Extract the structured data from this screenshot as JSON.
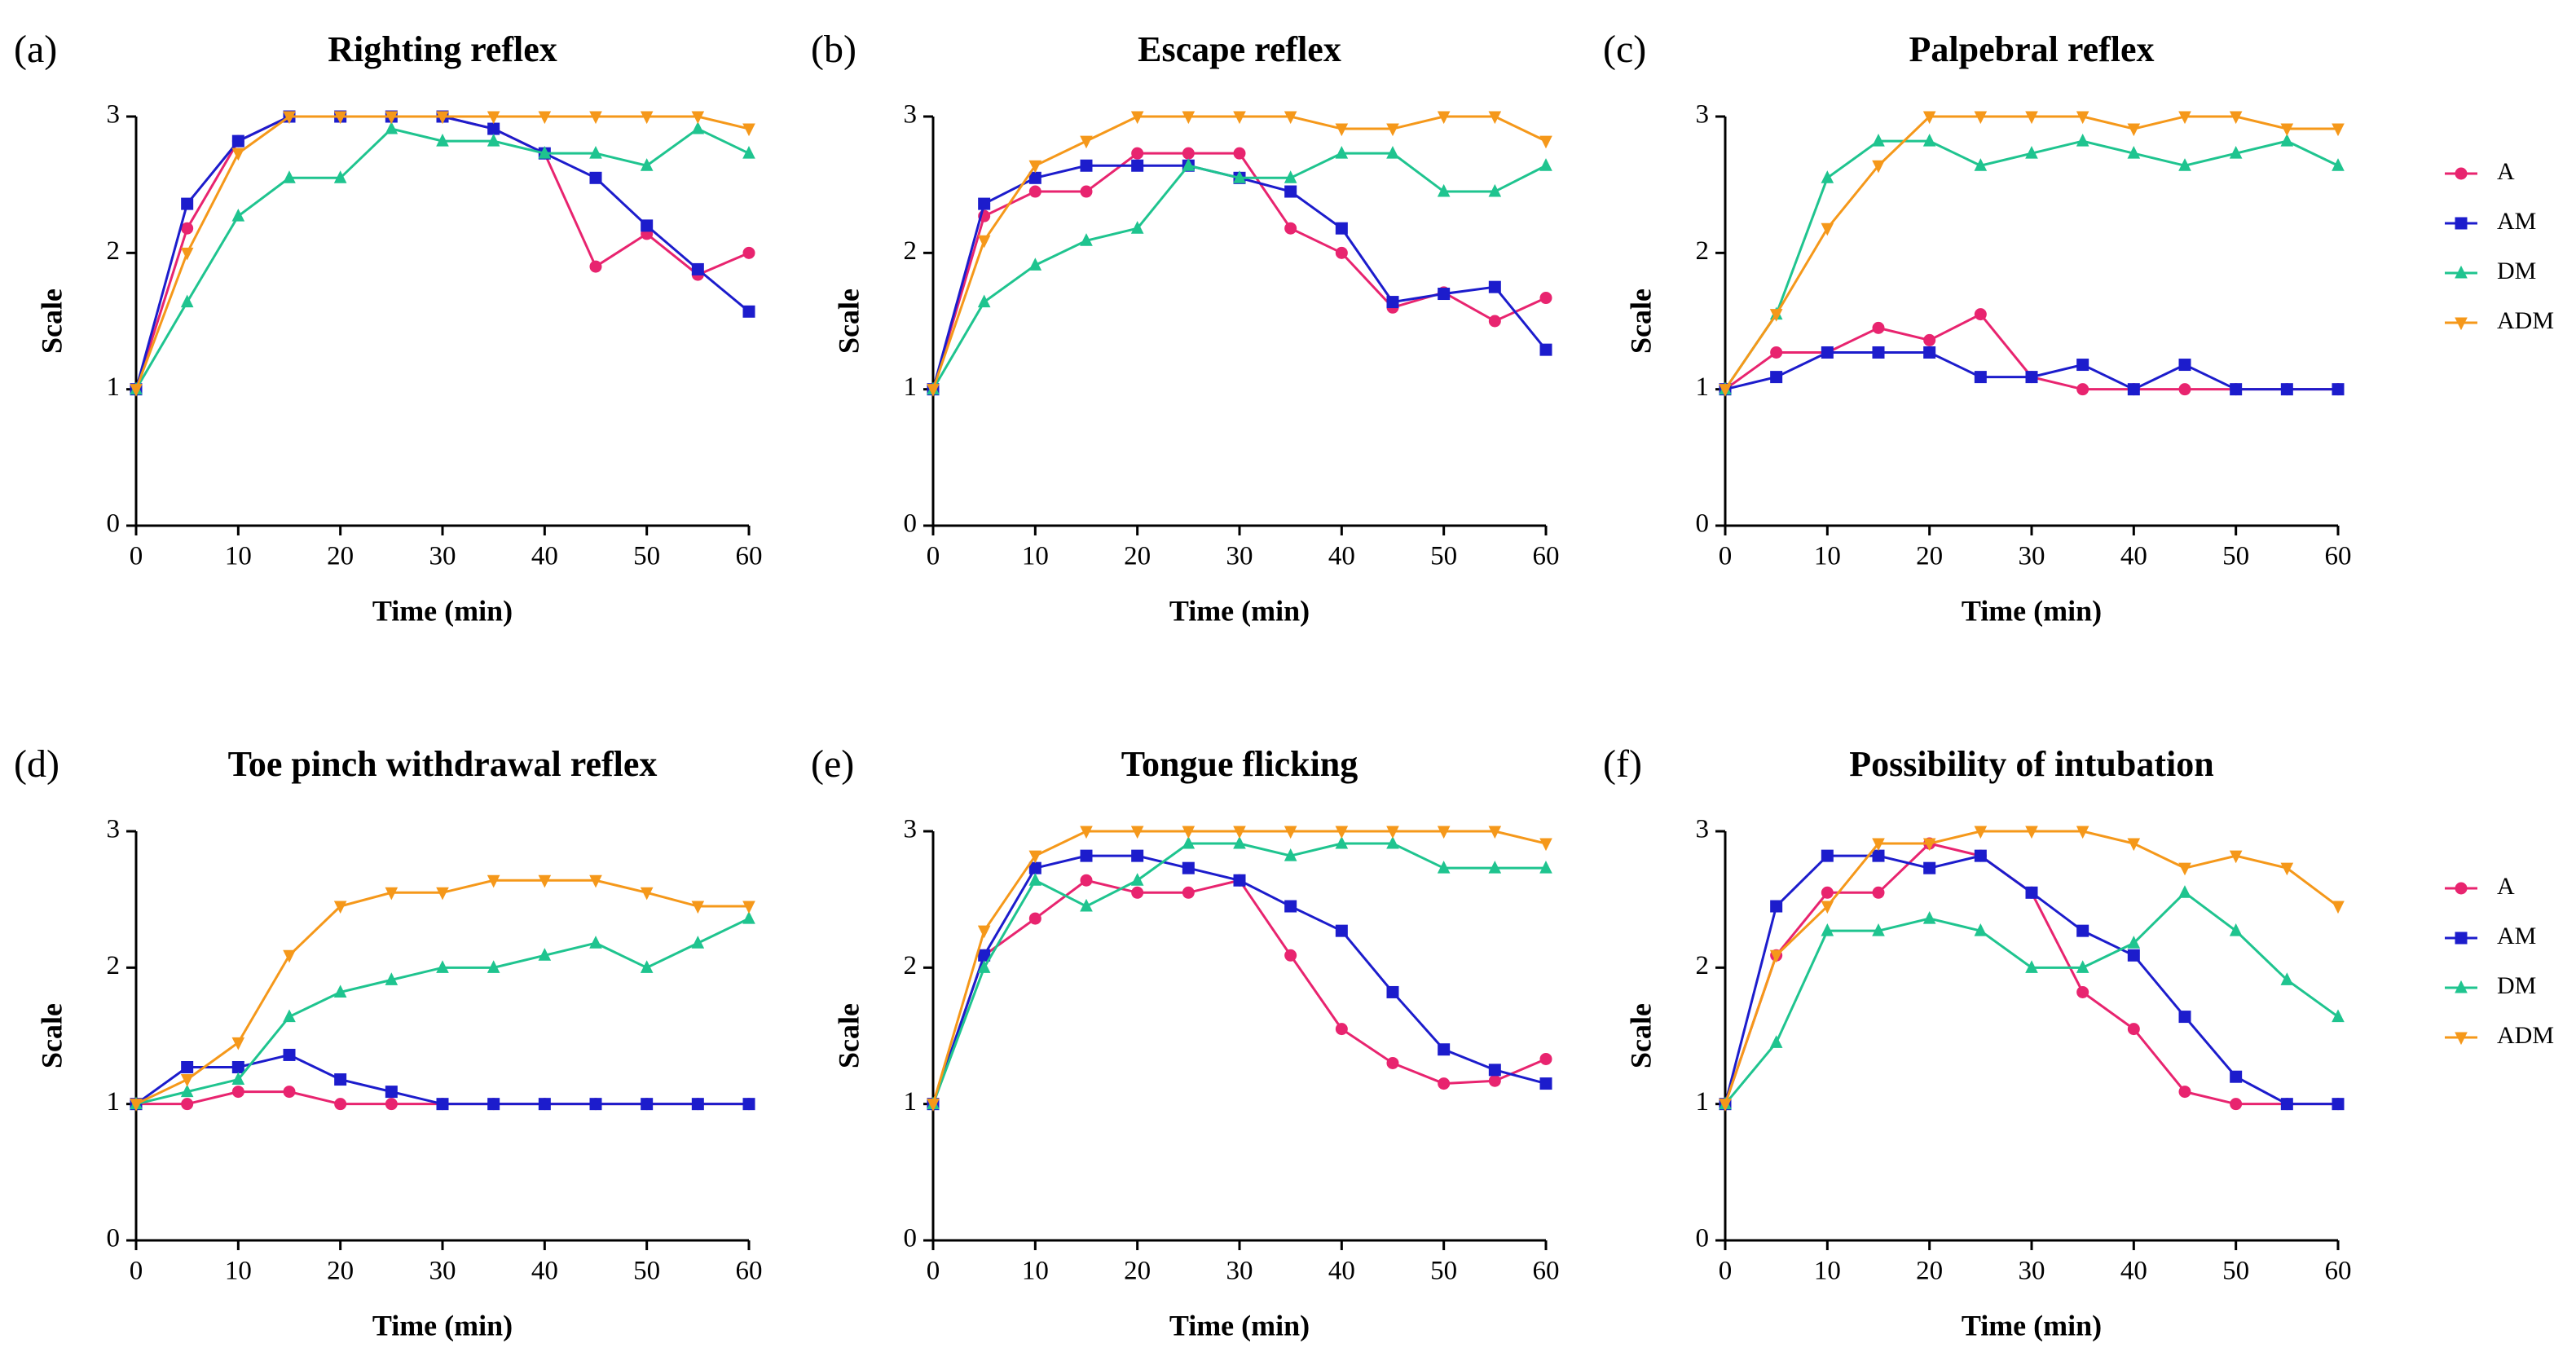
{
  "chart_data": [
    {
      "type": "line",
      "panel": "(a)",
      "title": "Righting reflex",
      "xlabel": "Time (min)",
      "ylabel": "Scale",
      "x": [
        0,
        5,
        10,
        15,
        20,
        25,
        30,
        35,
        40,
        45,
        50,
        55,
        60
      ],
      "xlim": [
        0,
        60
      ],
      "ylim": [
        0,
        3
      ],
      "xticks": [
        0,
        10,
        20,
        30,
        40,
        50,
        60
      ],
      "yticks": [
        0,
        1,
        2,
        3
      ],
      "legend": false,
      "series": [
        {
          "color": "#e8246f",
          "marker": "circle",
          "values": [
            1,
            2.18,
            2.82,
            3,
            3,
            3,
            3,
            2.91,
            2.73,
            1.9,
            2.14,
            1.84,
            2.0
          ]
        },
        {
          "color": "#1c1ccc",
          "marker": "square",
          "values": [
            1,
            2.36,
            2.82,
            3,
            3,
            3,
            3,
            2.91,
            2.73,
            2.55,
            2.2,
            1.88,
            1.57
          ]
        },
        {
          "color": "#1fc48f",
          "marker": "triangle-up",
          "values": [
            1,
            1.64,
            2.27,
            2.55,
            2.55,
            2.91,
            2.82,
            2.82,
            2.73,
            2.73,
            2.64,
            2.91,
            2.73
          ]
        },
        {
          "color": "#f5981a",
          "marker": "triangle-down",
          "values": [
            1,
            2.0,
            2.73,
            3,
            3,
            3,
            3,
            3,
            3,
            3,
            3,
            3,
            2.91
          ]
        }
      ]
    },
    {
      "type": "line",
      "panel": "(b)",
      "title": "Escape reflex",
      "xlabel": "Time (min)",
      "ylabel": "Scale",
      "x": [
        0,
        5,
        10,
        15,
        20,
        25,
        30,
        35,
        40,
        45,
        50,
        55,
        60
      ],
      "xlim": [
        0,
        60
      ],
      "ylim": [
        0,
        3
      ],
      "xticks": [
        0,
        10,
        20,
        30,
        40,
        50,
        60
      ],
      "yticks": [
        0,
        1,
        2,
        3
      ],
      "legend": false,
      "series": [
        {
          "color": "#e8246f",
          "marker": "circle",
          "values": [
            1,
            2.27,
            2.45,
            2.45,
            2.73,
            2.73,
            2.73,
            2.18,
            2.0,
            1.6,
            1.71,
            1.5,
            1.67
          ]
        },
        {
          "color": "#1c1ccc",
          "marker": "square",
          "values": [
            1,
            2.36,
            2.55,
            2.64,
            2.64,
            2.64,
            2.55,
            2.45,
            2.18,
            1.64,
            1.7,
            1.75,
            1.29
          ]
        },
        {
          "color": "#1fc48f",
          "marker": "triangle-up",
          "values": [
            1,
            1.64,
            1.91,
            2.09,
            2.18,
            2.64,
            2.55,
            2.55,
            2.73,
            2.73,
            2.45,
            2.45,
            2.64
          ]
        },
        {
          "color": "#f5981a",
          "marker": "triangle-down",
          "values": [
            1,
            2.09,
            2.64,
            2.82,
            3,
            3,
            3,
            3,
            2.91,
            2.91,
            3,
            3,
            2.82
          ]
        }
      ]
    },
    {
      "type": "line",
      "panel": "(c)",
      "title": "Palpebral reflex",
      "xlabel": "Time (min)",
      "ylabel": "Scale",
      "x": [
        0,
        5,
        10,
        15,
        20,
        25,
        30,
        35,
        40,
        45,
        50,
        55,
        60
      ],
      "xlim": [
        0,
        60
      ],
      "ylim": [
        0,
        3
      ],
      "xticks": [
        0,
        10,
        20,
        30,
        40,
        50,
        60
      ],
      "yticks": [
        0,
        1,
        2,
        3
      ],
      "legend": true,
      "series": [
        {
          "name": "A",
          "color": "#e8246f",
          "marker": "circle",
          "values": [
            1,
            1.27,
            1.27,
            1.45,
            1.36,
            1.55,
            1.09,
            1,
            1,
            1,
            1,
            1,
            1
          ]
        },
        {
          "name": "AM",
          "color": "#1c1ccc",
          "marker": "square",
          "values": [
            1,
            1.09,
            1.27,
            1.27,
            1.27,
            1.09,
            1.09,
            1.18,
            1,
            1.18,
            1,
            1,
            1
          ]
        },
        {
          "name": "DM",
          "color": "#1fc48f",
          "marker": "triangle-up",
          "values": [
            1,
            1.55,
            2.55,
            2.82,
            2.82,
            2.64,
            2.73,
            2.82,
            2.73,
            2.64,
            2.73,
            2.82,
            2.64
          ]
        },
        {
          "name": "ADM",
          "color": "#f5981a",
          "marker": "triangle-down",
          "values": [
            1,
            1.55,
            2.18,
            2.64,
            3,
            3,
            3,
            3,
            2.91,
            3,
            3,
            2.91,
            2.91
          ]
        }
      ]
    },
    {
      "type": "line",
      "panel": "(d)",
      "title": "Toe pinch withdrawal reflex",
      "xlabel": "Time (min)",
      "ylabel": "Scale",
      "x": [
        0,
        5,
        10,
        15,
        20,
        25,
        30,
        35,
        40,
        45,
        50,
        55,
        60
      ],
      "xlim": [
        0,
        60
      ],
      "ylim": [
        0,
        3
      ],
      "xticks": [
        0,
        10,
        20,
        30,
        40,
        50,
        60
      ],
      "yticks": [
        0,
        1,
        2,
        3
      ],
      "legend": false,
      "series": [
        {
          "color": "#e8246f",
          "marker": "circle",
          "values": [
            1,
            1,
            1.09,
            1.09,
            1,
            1,
            1,
            1,
            1,
            1,
            1,
            1,
            1
          ]
        },
        {
          "color": "#1c1ccc",
          "marker": "square",
          "values": [
            1,
            1.27,
            1.27,
            1.36,
            1.18,
            1.09,
            1,
            1,
            1,
            1,
            1,
            1,
            1
          ]
        },
        {
          "color": "#1fc48f",
          "marker": "triangle-up",
          "values": [
            1,
            1.09,
            1.18,
            1.64,
            1.82,
            1.91,
            2,
            2,
            2.09,
            2.18,
            2,
            2.18,
            2.36
          ]
        },
        {
          "color": "#f5981a",
          "marker": "triangle-down",
          "values": [
            1,
            1.18,
            1.45,
            2.09,
            2.45,
            2.55,
            2.55,
            2.64,
            2.64,
            2.64,
            2.55,
            2.45,
            2.45
          ]
        }
      ]
    },
    {
      "type": "line",
      "panel": "(e)",
      "title": "Tongue flicking",
      "xlabel": "Time (min)",
      "ylabel": "Scale",
      "x": [
        0,
        5,
        10,
        15,
        20,
        25,
        30,
        35,
        40,
        45,
        50,
        55,
        60
      ],
      "xlim": [
        0,
        60
      ],
      "ylim": [
        0,
        3
      ],
      "xticks": [
        0,
        10,
        20,
        30,
        40,
        50,
        60
      ],
      "yticks": [
        0,
        1,
        2,
        3
      ],
      "legend": false,
      "series": [
        {
          "color": "#e8246f",
          "marker": "circle",
          "values": [
            1,
            2.09,
            2.36,
            2.64,
            2.55,
            2.55,
            2.64,
            2.09,
            1.55,
            1.3,
            1.15,
            1.17,
            1.33
          ]
        },
        {
          "color": "#1c1ccc",
          "marker": "square",
          "values": [
            1,
            2.09,
            2.73,
            2.82,
            2.82,
            2.73,
            2.64,
            2.45,
            2.27,
            1.82,
            1.4,
            1.25,
            1.15
          ]
        },
        {
          "color": "#1fc48f",
          "marker": "triangle-up",
          "values": [
            1,
            2.0,
            2.64,
            2.45,
            2.64,
            2.91,
            2.91,
            2.82,
            2.91,
            2.91,
            2.73,
            2.73,
            2.73
          ]
        },
        {
          "color": "#f5981a",
          "marker": "triangle-down",
          "values": [
            1,
            2.27,
            2.82,
            3,
            3,
            3,
            3,
            3,
            3,
            3,
            3,
            3,
            2.91
          ]
        }
      ]
    },
    {
      "type": "line",
      "panel": "(f)",
      "title": "Possibility of intubation",
      "xlabel": "Time (min)",
      "ylabel": "Scale",
      "x": [
        0,
        5,
        10,
        15,
        20,
        25,
        30,
        35,
        40,
        45,
        50,
        55,
        60
      ],
      "xlim": [
        0,
        60
      ],
      "ylim": [
        0,
        3
      ],
      "xticks": [
        0,
        10,
        20,
        30,
        40,
        50,
        60
      ],
      "yticks": [
        0,
        1,
        2,
        3
      ],
      "legend": true,
      "series": [
        {
          "name": "A",
          "color": "#e8246f",
          "marker": "circle",
          "values": [
            1,
            2.09,
            2.55,
            2.55,
            2.91,
            2.82,
            2.55,
            1.82,
            1.55,
            1.09,
            1,
            1,
            1
          ]
        },
        {
          "name": "AM",
          "color": "#1c1ccc",
          "marker": "square",
          "values": [
            1,
            2.45,
            2.82,
            2.82,
            2.73,
            2.82,
            2.55,
            2.27,
            2.09,
            1.64,
            1.2,
            1,
            1
          ]
        },
        {
          "name": "DM",
          "color": "#1fc48f",
          "marker": "triangle-up",
          "values": [
            1,
            1.45,
            2.27,
            2.27,
            2.36,
            2.27,
            2,
            2,
            2.18,
            2.55,
            2.27,
            1.91,
            1.64
          ]
        },
        {
          "name": "ADM",
          "color": "#f5981a",
          "marker": "triangle-down",
          "values": [
            1,
            2.09,
            2.45,
            2.91,
            2.91,
            3,
            3,
            3,
            2.91,
            2.73,
            2.82,
            2.73,
            2.45
          ]
        }
      ]
    }
  ]
}
